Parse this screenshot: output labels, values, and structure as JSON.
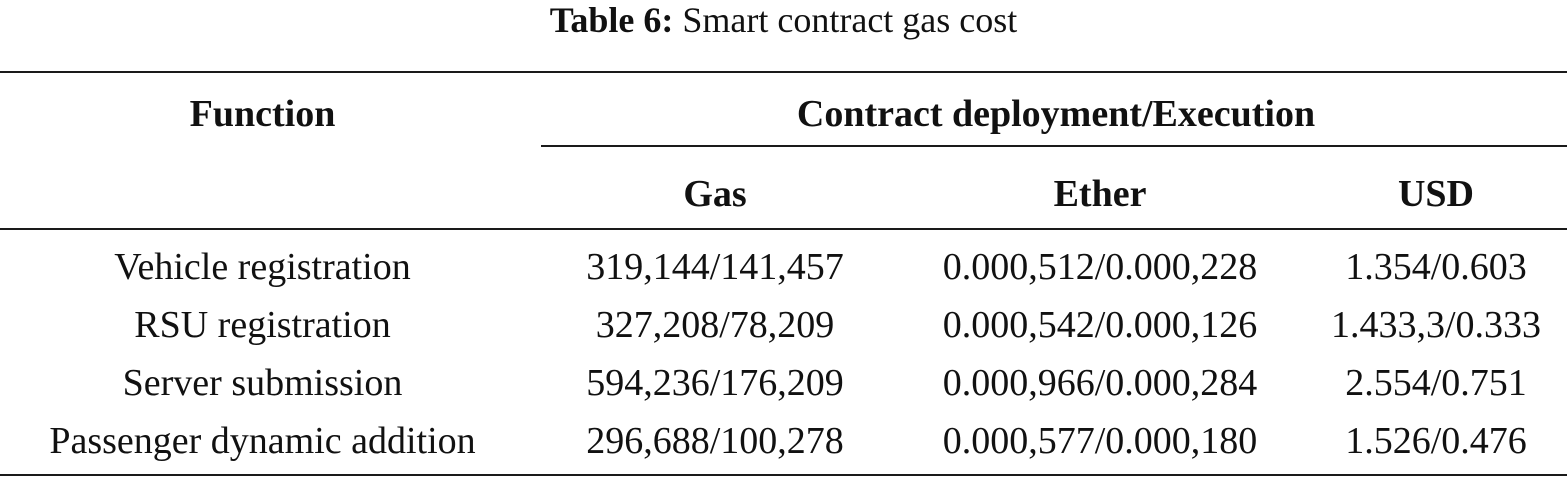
{
  "caption": {
    "label": "Table 6:",
    "text": "Smart contract gas cost"
  },
  "header": {
    "function": "Function",
    "group": "Contract deployment/Execution",
    "gas": "Gas",
    "ether": "Ether",
    "usd": "USD"
  },
  "rows": [
    {
      "function": "Vehicle registration",
      "gas": "319,144/141,457",
      "ether": "0.000,512/0.000,228",
      "usd": "1.354/0.603"
    },
    {
      "function": "RSU registration",
      "gas": "327,208/78,209",
      "ether": "0.000,542/0.000,126",
      "usd": "1.433,3/0.333"
    },
    {
      "function": "Server submission",
      "gas": "594,236/176,209",
      "ether": "0.000,966/0.000,284",
      "usd": "2.554/0.751"
    },
    {
      "function": "Passenger dynamic addition",
      "gas": "296,688/100,278",
      "ether": "0.000,577/0.000,180",
      "usd": "1.526/0.476"
    }
  ]
}
